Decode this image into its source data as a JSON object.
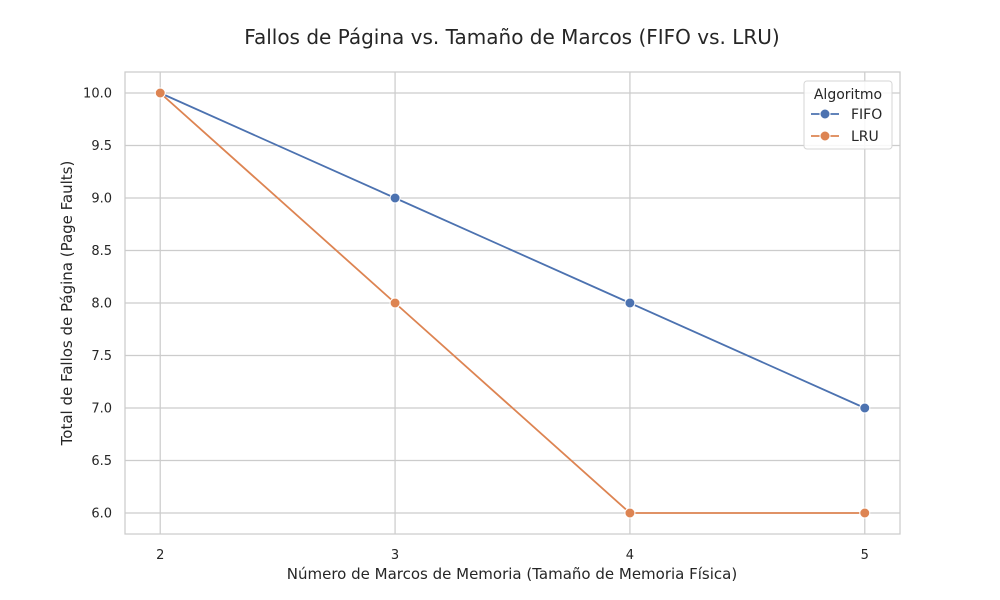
{
  "chart_data": {
    "type": "line",
    "title": "Fallos de Página vs. Tamaño de Marcos (FIFO vs. LRU)",
    "xlabel": "Número de Marcos de Memoria (Tamaño de Memoria Física)",
    "ylabel": "Total de Fallos de Página (Page Faults)",
    "x": [
      2,
      3,
      4,
      5
    ],
    "xticks": [
      "2",
      "3",
      "4",
      "5"
    ],
    "xlim": [
      1.85,
      5.15
    ],
    "ylim": [
      5.8,
      10.2
    ],
    "yticks": [
      "6.0",
      "6.5",
      "7.0",
      "7.5",
      "8.0",
      "8.5",
      "9.0",
      "9.5",
      "10.0"
    ],
    "ytick_values": [
      6.0,
      6.5,
      7.0,
      7.5,
      8.0,
      8.5,
      9.0,
      9.5,
      10.0
    ],
    "grid": true,
    "legend": {
      "title": "Algoritmo",
      "placement": "top-right"
    },
    "series": [
      {
        "name": "FIFO",
        "values": [
          10,
          9,
          8,
          7
        ],
        "color": "#4c72b0"
      },
      {
        "name": "LRU",
        "values": [
          10,
          8,
          6,
          6
        ],
        "color": "#dd8452"
      }
    ]
  }
}
